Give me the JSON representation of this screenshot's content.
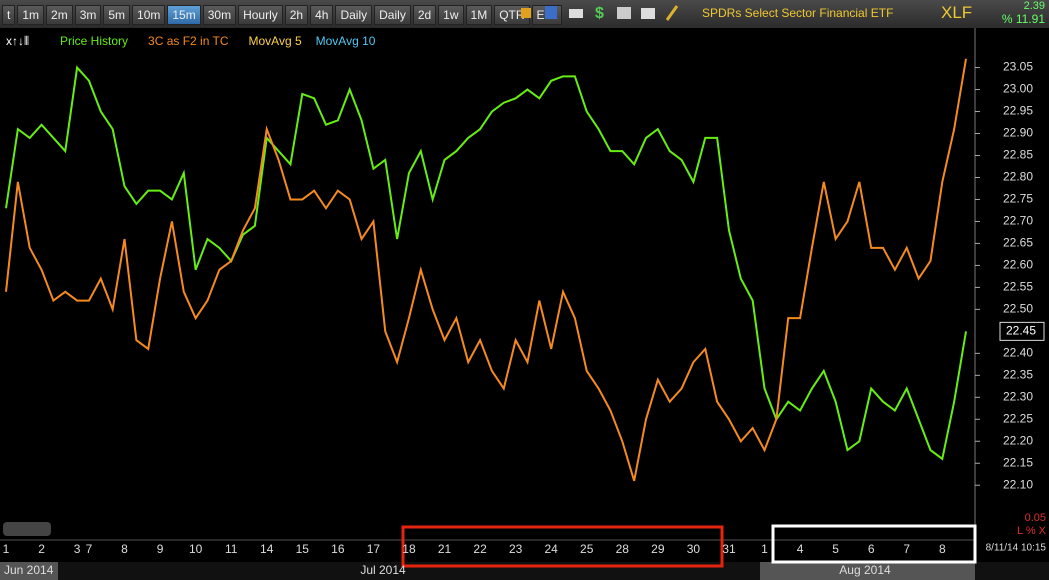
{
  "header": {
    "buttons": [
      "t",
      "1m",
      "2m",
      "3m",
      "5m",
      "10m",
      "15m",
      "30m",
      "Hourly",
      "2h",
      "4h",
      "Daily",
      "Daily",
      "2d",
      "1w",
      "1M",
      "QTR",
      "Edit"
    ],
    "title": "SPDRs Select Sector Financial ETF",
    "symbol": "XLF",
    "change": "2.39",
    "change_pct": "% 11.91"
  },
  "chart_data": {
    "type": "line",
    "categories": [
      "1",
      null,
      null,
      "2",
      null,
      null,
      "3",
      "7",
      null,
      null,
      "8",
      null,
      null,
      "9",
      null,
      null,
      "10",
      null,
      null,
      "11",
      null,
      null,
      "14",
      null,
      null,
      "15",
      null,
      null,
      "16",
      null,
      null,
      "17",
      null,
      null,
      "18",
      null,
      null,
      "21",
      null,
      null,
      "22",
      null,
      null,
      "23",
      null,
      null,
      "24",
      null,
      null,
      "25",
      null,
      null,
      "28",
      null,
      null,
      "29",
      null,
      null,
      "30",
      null,
      null,
      "31",
      null,
      null,
      "1",
      null,
      null,
      "4",
      null,
      null,
      "5",
      null,
      null,
      "6",
      null,
      null,
      "7",
      null,
      null,
      "8",
      null,
      null
    ],
    "months": [
      "Jun 2014",
      "Jul 2014",
      "Aug 2014"
    ],
    "series": [
      {
        "name": "Price History",
        "color": "#66ee11",
        "values": [
          22.73,
          22.91,
          22.89,
          22.92,
          22.89,
          22.86,
          23.05,
          23.02,
          22.95,
          22.91,
          22.78,
          22.74,
          22.77,
          22.77,
          22.75,
          22.81,
          22.59,
          22.66,
          22.64,
          22.61,
          22.67,
          22.69,
          22.89,
          22.86,
          22.83,
          22.99,
          22.98,
          22.92,
          22.93,
          23.0,
          22.93,
          22.82,
          22.84,
          22.66,
          22.81,
          22.86,
          22.75,
          22.84,
          22.86,
          22.89,
          22.91,
          22.95,
          22.97,
          22.98,
          23.0,
          22.98,
          23.02,
          23.03,
          23.03,
          22.95,
          22.91,
          22.86,
          22.86,
          22.83,
          22.89,
          22.91,
          22.86,
          22.84,
          22.79,
          22.89,
          22.89,
          22.68,
          22.57,
          22.52,
          22.32,
          22.25,
          22.29,
          22.27,
          22.32,
          22.36,
          22.29,
          22.18,
          22.2,
          22.32,
          22.29,
          22.27,
          22.32,
          22.25,
          22.18,
          22.16,
          22.29,
          22.45
        ]
      },
      {
        "name": "3C as F2 in TC",
        "color": "#f58a1f",
        "values": [
          22.54,
          22.79,
          22.64,
          22.59,
          22.52,
          22.54,
          22.52,
          22.52,
          22.57,
          22.5,
          22.66,
          22.43,
          22.41,
          22.57,
          22.7,
          22.54,
          22.48,
          22.52,
          22.59,
          22.61,
          22.68,
          22.73,
          22.91,
          22.84,
          22.75,
          22.75,
          22.77,
          22.73,
          22.77,
          22.75,
          22.66,
          22.7,
          22.45,
          22.38,
          22.48,
          22.59,
          22.5,
          22.43,
          22.48,
          22.38,
          22.43,
          22.36,
          22.32,
          22.43,
          22.38,
          22.52,
          22.41,
          22.54,
          22.48,
          22.36,
          22.32,
          22.27,
          22.2,
          22.11,
          22.25,
          22.34,
          22.29,
          22.32,
          22.38,
          22.41,
          22.29,
          22.25,
          22.2,
          22.23,
          22.18,
          22.25,
          22.48,
          22.48,
          22.64,
          22.79,
          22.66,
          22.7,
          22.79,
          22.64,
          22.64,
          22.59,
          22.64,
          22.57,
          22.61,
          22.79,
          22.91,
          23.07
        ]
      }
    ],
    "extra_legend": [
      {
        "name": "MovAvg 5",
        "color": "#ffd24a"
      },
      {
        "name": "MovAvg 10",
        "color": "#4fc8f5"
      }
    ],
    "ylim": [
      21.98,
      23.14
    ],
    "yticks": [
      23.05,
      {
        "value": 23.0,
        "label": "23.00"
      },
      22.95,
      {
        "value": 22.9,
        "label": "22.90"
      },
      22.85,
      {
        "value": 22.8,
        "label": "22.80"
      },
      22.75,
      {
        "value": 22.7,
        "label": "22.70"
      },
      22.65,
      {
        "value": 22.6,
        "label": "22.60"
      },
      22.55,
      {
        "value": 22.5,
        "label": "22.50"
      },
      {
        "value": 22.4,
        "label": "22.40"
      },
      22.35,
      {
        "value": 22.3,
        "label": "22.30"
      },
      22.25,
      {
        "value": 22.2,
        "label": "22.20"
      },
      22.15,
      {
        "value": 22.1,
        "label": "22.10"
      }
    ],
    "last_price": 22.45,
    "scale_step": "0.05",
    "scale_mode": "L % X",
    "timestamp": "8/11/14 10:15"
  }
}
